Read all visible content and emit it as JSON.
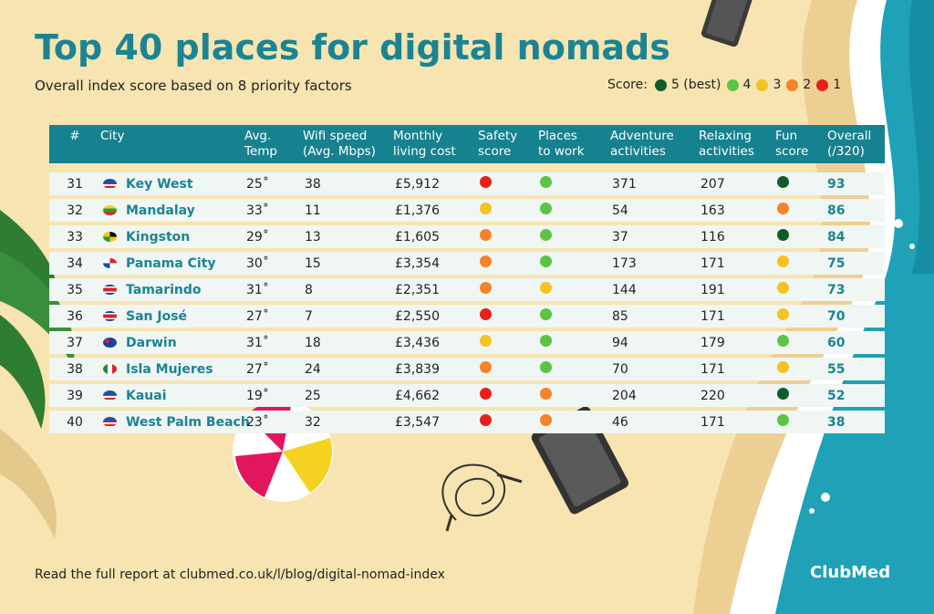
{
  "header": {
    "title": "Top 40 places for digital nomads",
    "subtitle": "Overall index score based on 8 priority factors"
  },
  "legend": {
    "label": "Score:",
    "items": [
      {
        "label": "5 (best)",
        "color": "#0e5c27"
      },
      {
        "label": "4",
        "color": "#5cc445"
      },
      {
        "label": "3",
        "color": "#f5c223"
      },
      {
        "label": "2",
        "color": "#f5832a"
      },
      {
        "label": "1",
        "color": "#e8201c"
      }
    ]
  },
  "columns": {
    "rank": "#",
    "city": "City",
    "temp": [
      "Avg.",
      "Temp"
    ],
    "wifi": [
      "Wifi speed",
      "(Avg. Mbps)"
    ],
    "cost": [
      "Monthly",
      "living cost"
    ],
    "safety": [
      "Safety",
      "score"
    ],
    "work": [
      "Places",
      "to work"
    ],
    "adventure": [
      "Adventure",
      "activities"
    ],
    "relaxing": [
      "Relaxing",
      "activities"
    ],
    "fun": [
      "Fun",
      "score"
    ],
    "overall": [
      "Overall",
      "(/320)"
    ]
  },
  "score_colors": {
    "5": "#0e5c27",
    "4": "#5cc445",
    "3": "#f5c223",
    "2": "#f5832a",
    "1": "#e8201c"
  },
  "chart_data": {
    "type": "table",
    "title": "Top 40 places for digital nomads",
    "rows": [
      {
        "rank": "31",
        "city": "Key West",
        "flag": "us",
        "temp": "25˚",
        "wifi": "38",
        "cost": "£5,912",
        "safety": 1,
        "work": 4,
        "adventure": "371",
        "relaxing": "207",
        "fun": 5,
        "overall": "93"
      },
      {
        "rank": "32",
        "city": "Mandalay",
        "flag": "mm",
        "temp": "33˚",
        "wifi": "11",
        "cost": "£1,376",
        "safety": 3,
        "work": 4,
        "adventure": "54",
        "relaxing": "163",
        "fun": 2,
        "overall": "86"
      },
      {
        "rank": "33",
        "city": "Kingston",
        "flag": "jm",
        "temp": "29˚",
        "wifi": "13",
        "cost": "£1,605",
        "safety": 2,
        "work": 4,
        "adventure": "37",
        "relaxing": "116",
        "fun": 5,
        "overall": "84"
      },
      {
        "rank": "34",
        "city": "Panama City",
        "flag": "pa",
        "temp": "30˚",
        "wifi": "15",
        "cost": "£3,354",
        "safety": 2,
        "work": 4,
        "adventure": "173",
        "relaxing": "171",
        "fun": 3,
        "overall": "75"
      },
      {
        "rank": "35",
        "city": "Tamarindo",
        "flag": "cr",
        "temp": "31˚",
        "wifi": "8",
        "cost": "£2,351",
        "safety": 2,
        "work": 3,
        "adventure": "144",
        "relaxing": "191",
        "fun": 3,
        "overall": "73"
      },
      {
        "rank": "36",
        "city": "San José",
        "flag": "cr",
        "temp": "27˚",
        "wifi": "7",
        "cost": "£2,550",
        "safety": 1,
        "work": 4,
        "adventure": "85",
        "relaxing": "171",
        "fun": 3,
        "overall": "70"
      },
      {
        "rank": "37",
        "city": "Darwin",
        "flag": "au",
        "temp": "31˚",
        "wifi": "18",
        "cost": "£3,436",
        "safety": 3,
        "work": 4,
        "adventure": "94",
        "relaxing": "179",
        "fun": 4,
        "overall": "60"
      },
      {
        "rank": "38",
        "city": "Isla Mujeres",
        "flag": "mx",
        "temp": "27˚",
        "wifi": "24",
        "cost": "£3,839",
        "safety": 2,
        "work": 4,
        "adventure": "70",
        "relaxing": "171",
        "fun": 3,
        "overall": "55"
      },
      {
        "rank": "39",
        "city": "Kauai",
        "flag": "us",
        "temp": "19˚",
        "wifi": "25",
        "cost": "£4,662",
        "safety": 1,
        "work": 2,
        "adventure": "204",
        "relaxing": "220",
        "fun": 5,
        "overall": "52"
      },
      {
        "rank": "40",
        "city": "West Palm Beach",
        "flag": "us",
        "temp": "23˚",
        "wifi": "32",
        "cost": "£3,547",
        "safety": 1,
        "work": 2,
        "adventure": "46",
        "relaxing": "171",
        "fun": 4,
        "overall": "38"
      }
    ]
  },
  "footer": {
    "text": "Read the full report at clubmed.co.uk/l/blog/digital-nomad-index"
  },
  "brand": {
    "name": "ClubMed"
  }
}
